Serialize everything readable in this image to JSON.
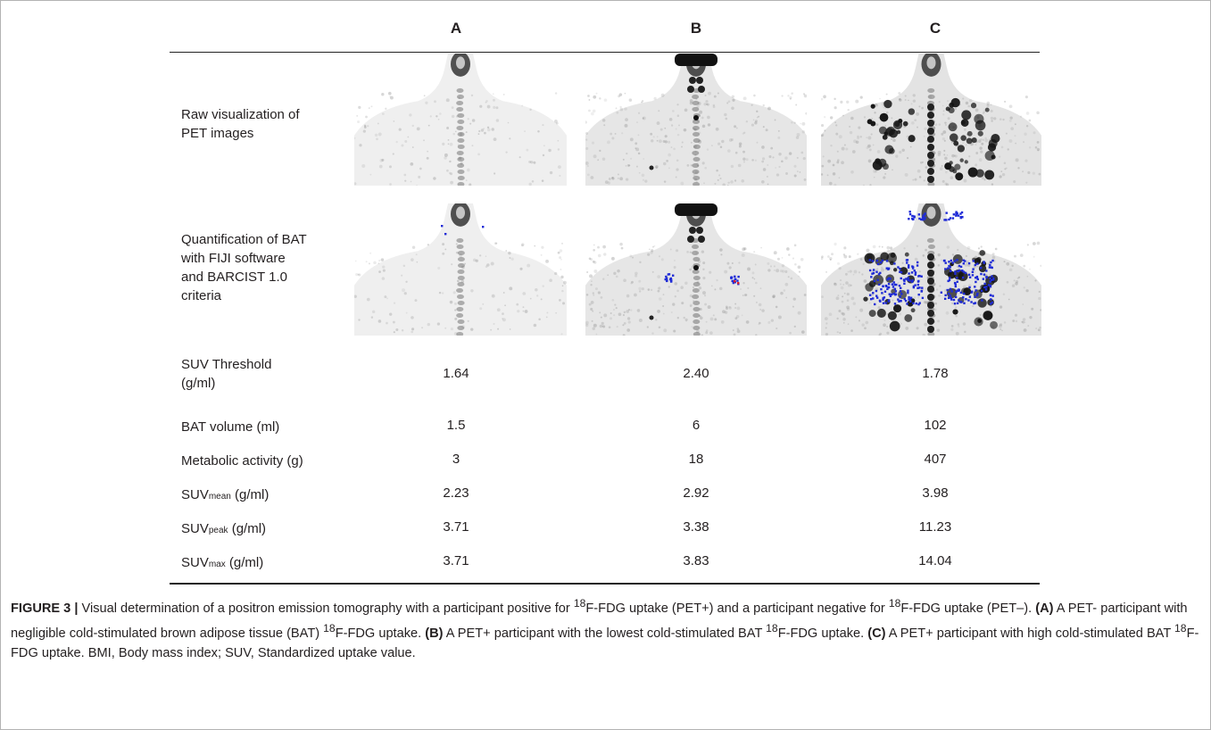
{
  "columns": [
    "A",
    "B",
    "C"
  ],
  "rows": {
    "raw_label": [
      "Raw visualization of",
      "PET images"
    ],
    "quant_label": [
      "Quantification of BAT",
      "with FIJI software",
      "and BARCIST 1.0",
      "criteria"
    ],
    "table": [
      {
        "label": "SUV Threshold",
        "label2": "(g/ml)",
        "values": [
          "1.64",
          "2.40",
          "1.78"
        ]
      },
      {
        "label": "BAT volume (ml)",
        "label2": "",
        "values": [
          "1.5",
          "6",
          "102"
        ]
      },
      {
        "label": "Metabolic activity (g)",
        "label2": "",
        "values": [
          "3",
          "18",
          "407"
        ]
      },
      {
        "label": "SUV",
        "sub": "mean",
        "suffix": " (g/ml)",
        "values": [
          "2.23",
          "2.92",
          "3.98"
        ]
      },
      {
        "label": "SUV",
        "sub": "peak",
        "suffix": " (g/ml)",
        "values": [
          "3.71",
          "3.38",
          "11.23"
        ]
      },
      {
        "label": "SUV",
        "sub": "max",
        "suffix": " (g/ml)",
        "values": [
          "3.71",
          "3.83",
          "14.04"
        ]
      }
    ]
  },
  "caption": {
    "fig": "FIGURE 3 |",
    "t1": " Visual determination of a positron emission tomography with a participant positive for ",
    "sup18": "18",
    "t2": "F-FDG uptake (PET+) and a participant negative for ",
    "t3": "F-FDG uptake (PET–). ",
    "a": "(A)",
    "t4": " A PET- participant with negligible cold-stimulated brown adipose tissue (BAT) ",
    "t5": "F-FDG uptake. ",
    "b": "(B)",
    "t6": " A PET+ participant with the lowest cold-stimulated BAT ",
    "t7": "F-FDG uptake. ",
    "c": "(C)",
    "t8": " A PET+ participant with high cold-stimulated BAT ",
    "t9": "F-FDG uptake. BMI, Body mass index; SUV, Standardized uptake value."
  },
  "colors": {
    "bat_blue": "#1f2bd6",
    "bat_red": "#e0202a",
    "rule": "#222222"
  }
}
